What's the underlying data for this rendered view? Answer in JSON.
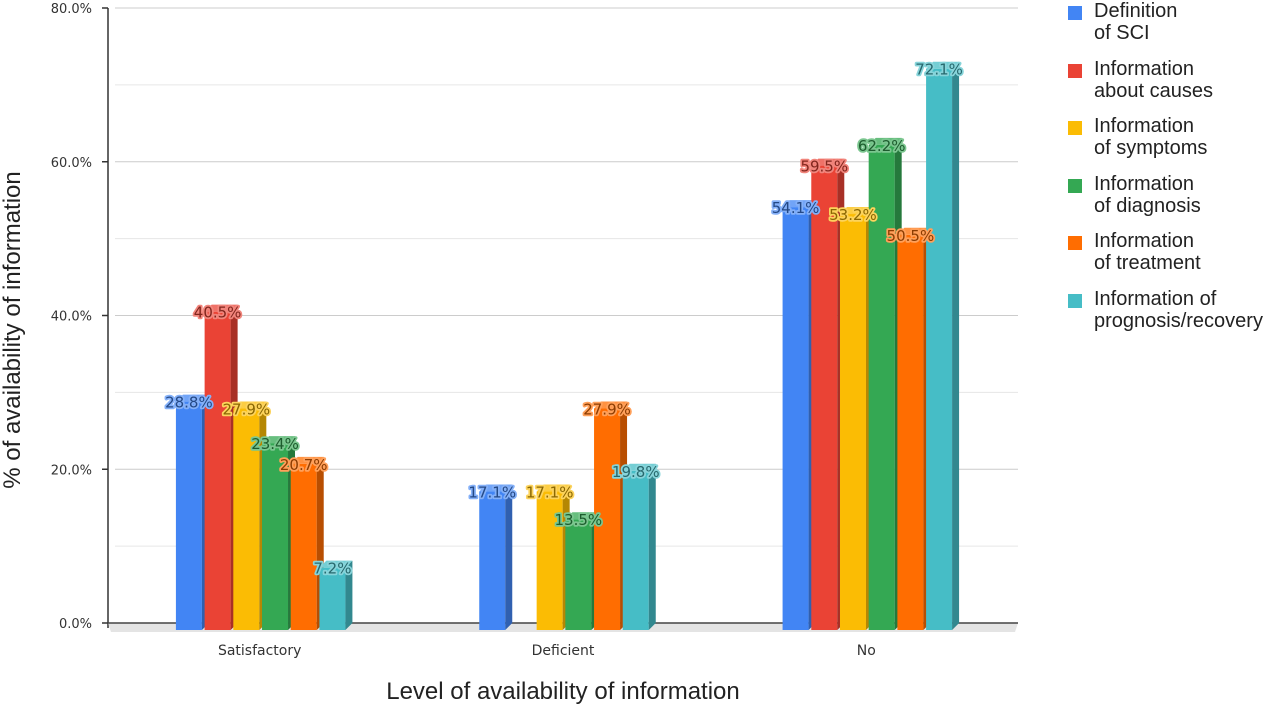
{
  "chart_data": {
    "type": "bar",
    "title": "",
    "xlabel": "Level of availability of information",
    "ylabel": "% of availability of information",
    "ylim": [
      0,
      80
    ],
    "yticks": [
      "0.0%",
      "20.0%",
      "40.0%",
      "60.0%",
      "80.0%"
    ],
    "grid": true,
    "legend_position": "right",
    "categories": [
      "Satisfactory",
      "Deficient",
      "No"
    ],
    "series": [
      {
        "name": "Definition\nof SCI",
        "color": "#4285f4",
        "values": [
          28.8,
          17.1,
          54.1
        ],
        "labels": [
          "28.8%",
          "17.1%",
          "54.1%"
        ]
      },
      {
        "name": "Information\nabout causes",
        "color": "#ea4335",
        "values": [
          40.5,
          0,
          59.5
        ],
        "labels": [
          "40.5%",
          "",
          "59.5%"
        ]
      },
      {
        "name": "Information\nof symptoms",
        "color": "#fbbc04",
        "values": [
          27.9,
          17.1,
          53.2
        ],
        "labels": [
          "27.9%",
          "17.1%",
          "53.2%"
        ]
      },
      {
        "name": "Information\nof diagnosis",
        "color": "#34a853",
        "values": [
          23.4,
          13.5,
          62.2
        ],
        "labels": [
          "23.4%",
          "13.5%",
          "62.2%"
        ]
      },
      {
        "name": "Information\nof treatment",
        "color": "#ff6d01",
        "values": [
          20.7,
          27.9,
          50.5
        ],
        "labels": [
          "20.7%",
          "27.9%",
          "50.5%"
        ]
      },
      {
        "name": "Information of\nprognosis/recovery",
        "color": "#46bdc6",
        "values": [
          7.2,
          19.8,
          72.1
        ],
        "labels": [
          "7.2%",
          "19.8%",
          "72.1%"
        ]
      }
    ]
  }
}
